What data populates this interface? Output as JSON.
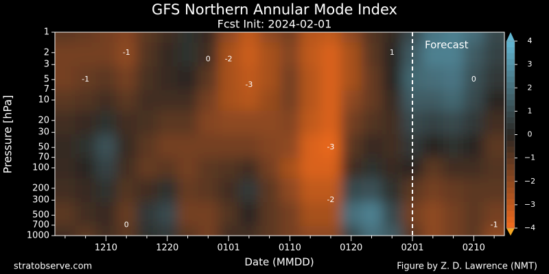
{
  "chart_data": {
    "type": "contour",
    "title": "GFS Northern Annular Mode Index",
    "subtitle": "Fcst Init: 2024-02-01",
    "xlabel": "Date (MMDD)",
    "ylabel": "Pressure [hPa]",
    "categories": [
      null,
      null,
      "1210",
      null,
      null,
      "1220",
      null,
      null,
      "0101",
      null,
      null,
      "0110",
      null,
      null,
      "0120",
      null,
      null,
      "0201",
      null,
      null,
      "0210",
      null
    ],
    "levels": [
      1000,
      500,
      200,
      100,
      50,
      20,
      10,
      5,
      2,
      1
    ],
    "z": [
      [
        -0.5,
        -1,
        -0.5,
        -1,
        0.3,
        0.5,
        -1,
        -1.5,
        -0.5,
        -0.5,
        -1,
        -1.5,
        -2,
        -2,
        1,
        2,
        1.5,
        -1,
        -2,
        -1.5,
        -1,
        -2
      ],
      [
        -1,
        -0.5,
        -0.3,
        -1.2,
        0.5,
        1,
        -1.5,
        -1.5,
        -0.8,
        0,
        -1,
        -1.5,
        -2.5,
        -2.5,
        2,
        2.5,
        1,
        -1.5,
        -2,
        -1.5,
        -1,
        -1.5
      ],
      [
        -0.5,
        -0.3,
        0.3,
        -0.8,
        -0.5,
        0.3,
        -1.2,
        -1,
        -0.5,
        0.5,
        -1,
        -2,
        -3,
        -3,
        1,
        1.2,
        0.3,
        -1,
        -1.5,
        -1.2,
        -1,
        -1
      ],
      [
        -0.3,
        0,
        0.8,
        -0.5,
        -1.2,
        -1,
        -1.5,
        -1,
        -0.8,
        -0.5,
        -1.5,
        -2.5,
        -3.5,
        -3.5,
        -0.5,
        0.3,
        -0.3,
        0,
        -1,
        -0.5,
        -0.5,
        -0.8
      ],
      [
        -0.2,
        0.3,
        1.2,
        -0.3,
        -1,
        -1.5,
        -1.5,
        -1.5,
        -1.5,
        -1.5,
        -1.8,
        -2,
        -3.5,
        -3.8,
        -1,
        -0.3,
        -0.5,
        0.5,
        0,
        0.3,
        0,
        -1
      ],
      [
        -0.5,
        -0.3,
        0.3,
        -0.5,
        -0.6,
        -1,
        -1,
        -1.8,
        -2,
        -2,
        -2,
        -1.8,
        -3,
        -3.5,
        -1.5,
        -0.8,
        -0.5,
        1,
        0.8,
        1,
        0.5,
        -0.5
      ],
      [
        -1,
        -0.8,
        -0.5,
        -1,
        -0.5,
        -0.5,
        -0.5,
        -1.5,
        -2.5,
        -2.8,
        -2.2,
        -1.5,
        -2.8,
        -3.5,
        -2,
        -1.2,
        -0.3,
        1.5,
        1.5,
        1.8,
        1,
        0
      ],
      [
        -1.5,
        -1.2,
        -1,
        -1.5,
        -0.6,
        -0.3,
        0,
        -1,
        -2.5,
        -3,
        -2.5,
        -1.5,
        -2.8,
        -3.5,
        -2.5,
        -1.2,
        0,
        1.8,
        2,
        2.2,
        1.2,
        0.5
      ],
      [
        -1.5,
        -1.5,
        -1.5,
        -2,
        -0.8,
        -0.2,
        0.3,
        -0.5,
        -2.5,
        -3.2,
        -2.5,
        -1.8,
        -3,
        -3.5,
        -2.5,
        -1,
        0,
        1.5,
        2.5,
        2.5,
        1.5,
        0.8
      ],
      [
        -1,
        -1.2,
        -1.5,
        -1.8,
        -1,
        -0.5,
        0.3,
        -0.3,
        -2,
        -3,
        -2,
        -1.5,
        -2.8,
        -3,
        -2,
        -0.8,
        -0.2,
        1,
        2.2,
        2.5,
        2,
        1
      ]
    ],
    "ylim": [
      1000,
      1
    ],
    "log_y": true,
    "yticks": [
      1000,
      700,
      500,
      300,
      200,
      100,
      70,
      50,
      30,
      20,
      10,
      7,
      5,
      3,
      2,
      1
    ],
    "clim": [
      -4,
      4
    ],
    "cticks": [
      {
        "value": -4,
        "label": "−4"
      },
      {
        "value": -3,
        "label": "−3"
      },
      {
        "value": -2,
        "label": "−2"
      },
      {
        "value": -1,
        "label": "−1"
      },
      0,
      1,
      2,
      3,
      4
    ],
    "colors": {
      "low": "#f26b1d",
      "mid": "#2a2622",
      "high": "#62b6d2"
    },
    "forecast": {
      "label": "Forecast",
      "start": "0201"
    },
    "contour_labels": [
      {
        "text": "-1",
        "pressure": 5,
        "column": 1
      },
      {
        "text": "-1",
        "pressure": 2,
        "column": 3
      },
      {
        "text": "0",
        "pressure": 2.5,
        "column": 7
      },
      {
        "text": "-2",
        "pressure": 2.5,
        "column": 8
      },
      {
        "text": "-3",
        "pressure": 6,
        "column": 9
      },
      {
        "text": "-3",
        "pressure": 50,
        "column": 13
      },
      {
        "text": "-2",
        "pressure": 300,
        "column": 13
      },
      {
        "text": "1",
        "pressure": 2,
        "column": 16
      },
      {
        "text": "0",
        "pressure": 5,
        "column": 20
      },
      {
        "text": "0",
        "pressure": 700,
        "column": 3
      },
      {
        "text": "-1",
        "pressure": 700,
        "column": 21
      }
    ],
    "footer_left": "stratobserve.com",
    "footer_right": "Figure by Z. D. Lawrence (NMT)"
  }
}
